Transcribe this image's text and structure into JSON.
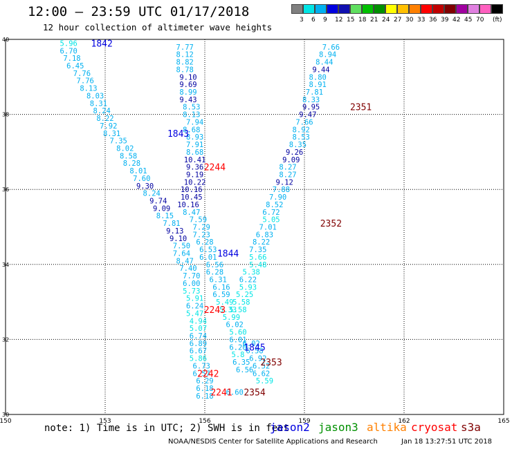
{
  "header": {
    "title": "12:00 – 23:59 UTC 01/17/2018",
    "subtitle": "12 hour collection of altimeter wave heights"
  },
  "legend": {
    "unit": "(ft)",
    "colors": [
      "#808080",
      "#00e5e5",
      "#00b0f0",
      "#0000e0",
      "#1010b0",
      "#60e060",
      "#00c000",
      "#009000",
      "#ffff00",
      "#ffc000",
      "#ff8000",
      "#ff0000",
      "#c00000",
      "#800000",
      "#a000a0",
      "#e080e0",
      "#ff60c0",
      "#000000"
    ],
    "labels": [
      "3",
      "6",
      "9",
      "12",
      "15",
      "18",
      "21",
      "24",
      "27",
      "30",
      "33",
      "36",
      "39",
      "42",
      "45",
      "70"
    ]
  },
  "footer": {
    "note": "note: 1) Time is in UTC; 2) SWH is in feet",
    "satellites": [
      {
        "name": "jason2",
        "color": "#0000e0"
      },
      {
        "name": "jason3",
        "color": "#009000"
      },
      {
        "name": "altika",
        "color": "#ff8000"
      },
      {
        "name": "cryosat",
        "color": "#ff0000"
      },
      {
        "name": "s3a",
        "color": "#800000"
      }
    ],
    "credit": "NOAA/NESDIS Center for Satellite Applications and Research",
    "stamp": "Jan 18 13:27:51 UTC 2018"
  },
  "chart_data": {
    "type": "scatter",
    "x_ticks": [
      "150",
      "153",
      "156",
      "159",
      "162",
      "165"
    ],
    "y_ticks": [
      "30",
      "32",
      "34",
      "36",
      "38",
      "40"
    ],
    "xlim": [
      150,
      165
    ],
    "ylim": [
      30,
      40
    ],
    "grid": true,
    "swh_points": [
      [
        151.9,
        39.9,
        "5.96"
      ],
      [
        151.9,
        39.7,
        "6.70"
      ],
      [
        152.0,
        39.5,
        "7.18"
      ],
      [
        152.1,
        39.3,
        "6.45"
      ],
      [
        152.3,
        39.1,
        "7.76"
      ],
      [
        152.4,
        38.9,
        "7.76"
      ],
      [
        152.5,
        38.7,
        "8.13"
      ],
      [
        152.7,
        38.5,
        "8.03"
      ],
      [
        152.8,
        38.3,
        "8.31"
      ],
      [
        152.9,
        38.1,
        "8.24"
      ],
      [
        153.0,
        37.9,
        "8.22"
      ],
      [
        153.1,
        37.7,
        "7.92"
      ],
      [
        153.2,
        37.5,
        "8.31"
      ],
      [
        153.4,
        37.3,
        "7.35"
      ],
      [
        153.6,
        37.1,
        "8.02"
      ],
      [
        153.7,
        36.9,
        "8.58"
      ],
      [
        153.8,
        36.7,
        "8.28"
      ],
      [
        154.0,
        36.5,
        "8.01"
      ],
      [
        154.1,
        36.3,
        "7.60"
      ],
      [
        154.2,
        36.1,
        "9.30"
      ],
      [
        154.4,
        35.9,
        "8.24"
      ],
      [
        154.6,
        35.7,
        "9.74"
      ],
      [
        154.7,
        35.5,
        "9.09"
      ],
      [
        154.8,
        35.3,
        "8.15"
      ],
      [
        155.0,
        35.1,
        "7.81"
      ],
      [
        155.1,
        34.9,
        "9.13"
      ],
      [
        155.2,
        34.7,
        "9.10"
      ],
      [
        155.3,
        34.5,
        "7.50"
      ],
      [
        155.3,
        34.3,
        "7.64"
      ],
      [
        155.4,
        34.1,
        "8.47"
      ],
      [
        155.5,
        33.9,
        "7.40"
      ],
      [
        155.6,
        33.7,
        "7.70"
      ],
      [
        155.6,
        33.5,
        "6.00"
      ],
      [
        155.6,
        33.3,
        "5.73"
      ],
      [
        155.7,
        33.1,
        "5.91"
      ],
      [
        155.7,
        32.9,
        "6.24"
      ],
      [
        155.7,
        32.7,
        "5.47"
      ],
      [
        155.8,
        32.5,
        "4.94"
      ],
      [
        155.8,
        32.3,
        "5.07"
      ],
      [
        155.8,
        32.1,
        "6.74"
      ],
      [
        155.8,
        31.9,
        "6.89"
      ],
      [
        155.8,
        31.7,
        "6.67"
      ],
      [
        155.8,
        31.5,
        "5.86"
      ],
      [
        155.9,
        31.3,
        "6.73"
      ],
      [
        155.9,
        31.1,
        "6.57"
      ],
      [
        156.0,
        30.9,
        "6.29"
      ],
      [
        156.0,
        30.7,
        "6.18"
      ],
      [
        156.0,
        30.5,
        "6.18"
      ],
      [
        155.4,
        39.8,
        "7.77"
      ],
      [
        155.4,
        39.6,
        "8.12"
      ],
      [
        155.4,
        39.4,
        "8.82"
      ],
      [
        155.4,
        39.2,
        "8.78"
      ],
      [
        155.5,
        39.0,
        "9.10"
      ],
      [
        155.5,
        38.8,
        "9.69"
      ],
      [
        155.5,
        38.6,
        "8.99"
      ],
      [
        155.5,
        38.4,
        "9.43"
      ],
      [
        155.6,
        38.2,
        "8.53"
      ],
      [
        155.6,
        38.0,
        "8.13"
      ],
      [
        155.7,
        37.8,
        "7.94"
      ],
      [
        155.6,
        37.6,
        "8.68"
      ],
      [
        155.7,
        37.4,
        "8.93"
      ],
      [
        155.7,
        37.2,
        "7.91"
      ],
      [
        155.7,
        37.0,
        "8.68"
      ],
      [
        155.7,
        36.8,
        "10.41"
      ],
      [
        155.7,
        36.6,
        "9.36"
      ],
      [
        155.7,
        36.4,
        "9.19"
      ],
      [
        155.7,
        36.2,
        "10.22"
      ],
      [
        155.6,
        36.0,
        "10.16"
      ],
      [
        155.6,
        35.8,
        "10.45"
      ],
      [
        155.5,
        35.6,
        "10.16"
      ],
      [
        155.6,
        35.4,
        "8.47"
      ],
      [
        155.8,
        35.2,
        "7.59"
      ],
      [
        155.9,
        35.0,
        "7.29"
      ],
      [
        155.9,
        34.8,
        "7.23"
      ],
      [
        156.0,
        34.6,
        "6.28"
      ],
      [
        156.1,
        34.4,
        "6.53"
      ],
      [
        156.1,
        34.2,
        "6.01"
      ],
      [
        156.3,
        34.0,
        "6.56"
      ],
      [
        156.3,
        33.8,
        "6.28"
      ],
      [
        156.4,
        33.6,
        "6.31"
      ],
      [
        156.5,
        33.4,
        "6.16"
      ],
      [
        156.5,
        33.2,
        "6.59"
      ],
      [
        156.6,
        33.0,
        "5.49"
      ],
      [
        156.7,
        32.8,
        "5.33"
      ],
      [
        156.8,
        32.6,
        "5.99"
      ],
      [
        156.9,
        32.4,
        "6.02"
      ],
      [
        157.0,
        32.2,
        "5.60"
      ],
      [
        157.0,
        32.0,
        "6.01"
      ],
      [
        157.0,
        31.8,
        "6.20"
      ],
      [
        157.0,
        31.6,
        "5.8"
      ],
      [
        157.1,
        31.4,
        "6.35"
      ],
      [
        157.2,
        31.2,
        "6.56"
      ],
      [
        156.9,
        30.6,
        "6.60"
      ],
      [
        159.8,
        39.8,
        "7.66"
      ],
      [
        159.7,
        39.6,
        "8.94"
      ],
      [
        159.6,
        39.4,
        "8.44"
      ],
      [
        159.5,
        39.2,
        "9.44"
      ],
      [
        159.4,
        39.0,
        "8.80"
      ],
      [
        159.4,
        38.8,
        "8.91"
      ],
      [
        159.3,
        38.6,
        "7.81"
      ],
      [
        159.2,
        38.4,
        "8.33"
      ],
      [
        159.2,
        38.2,
        "9.95"
      ],
      [
        159.1,
        38.0,
        "9.47"
      ],
      [
        159.0,
        37.8,
        "7.66"
      ],
      [
        158.9,
        37.6,
        "8.92"
      ],
      [
        158.9,
        37.4,
        "8.53"
      ],
      [
        158.8,
        37.2,
        "8.35"
      ],
      [
        158.7,
        37.0,
        "9.26"
      ],
      [
        158.6,
        36.8,
        "9.09"
      ],
      [
        158.5,
        36.6,
        "8.27"
      ],
      [
        158.5,
        36.4,
        "8.27"
      ],
      [
        158.4,
        36.2,
        "9.12"
      ],
      [
        158.3,
        36.0,
        "7.88"
      ],
      [
        158.2,
        35.8,
        "7.90"
      ],
      [
        158.1,
        35.6,
        "8.52"
      ],
      [
        158.0,
        35.4,
        "6.72"
      ],
      [
        158.0,
        35.2,
        "5.05"
      ],
      [
        157.9,
        35.0,
        "7.01"
      ],
      [
        157.8,
        34.8,
        "6.83"
      ],
      [
        157.7,
        34.6,
        "8.22"
      ],
      [
        157.6,
        34.4,
        "7.35"
      ],
      [
        157.6,
        34.2,
        "5.66"
      ],
      [
        157.6,
        34.0,
        "5.48"
      ],
      [
        157.4,
        33.8,
        "5.38"
      ],
      [
        157.3,
        33.6,
        "6.22"
      ],
      [
        157.3,
        33.4,
        "5.93"
      ],
      [
        157.2,
        33.2,
        "5.25"
      ],
      [
        157.1,
        33.0,
        "5.58"
      ],
      [
        157.0,
        32.8,
        "5.58"
      ],
      [
        157.4,
        31.9,
        "6.02"
      ],
      [
        157.5,
        31.7,
        "6.58"
      ],
      [
        157.6,
        31.5,
        "6.92"
      ],
      [
        157.7,
        31.3,
        "6.52"
      ],
      [
        157.7,
        31.1,
        "6.62"
      ],
      [
        157.8,
        30.9,
        "5.59"
      ]
    ],
    "pass_labels": [
      {
        "id": "1842",
        "x": 152.9,
        "y": 39.9,
        "sat": "jason2"
      },
      {
        "id": "1843",
        "x": 155.2,
        "y": 37.5,
        "sat": "jason2"
      },
      {
        "id": "1844",
        "x": 156.7,
        "y": 34.3,
        "sat": "jason2"
      },
      {
        "id": "1845",
        "x": 157.5,
        "y": 31.8,
        "sat": "jason2"
      },
      {
        "id": "2244",
        "x": 156.3,
        "y": 36.6,
        "sat": "cryosat"
      },
      {
        "id": "2243",
        "x": 156.3,
        "y": 32.8,
        "sat": "cryosat"
      },
      {
        "id": "2242",
        "x": 156.1,
        "y": 31.1,
        "sat": "cryosat"
      },
      {
        "id": "2241",
        "x": 156.5,
        "y": 30.6,
        "sat": "cryosat"
      },
      {
        "id": "2351",
        "x": 160.7,
        "y": 38.2,
        "sat": "s3a"
      },
      {
        "id": "2352",
        "x": 159.8,
        "y": 35.1,
        "sat": "s3a"
      },
      {
        "id": "2353",
        "x": 158.0,
        "y": 31.4,
        "sat": "s3a"
      },
      {
        "id": "2354",
        "x": 157.5,
        "y": 30.6,
        "sat": "s3a"
      }
    ],
    "value_color_ranges": [
      {
        "min": 0,
        "max": 6,
        "color": "#00e5e5"
      },
      {
        "min": 6,
        "max": 9,
        "color": "#00b0f0"
      },
      {
        "min": 9,
        "max": 12,
        "color": "#0000a0"
      },
      {
        "min": 12,
        "max": 99,
        "color": "#1010b0"
      }
    ]
  }
}
